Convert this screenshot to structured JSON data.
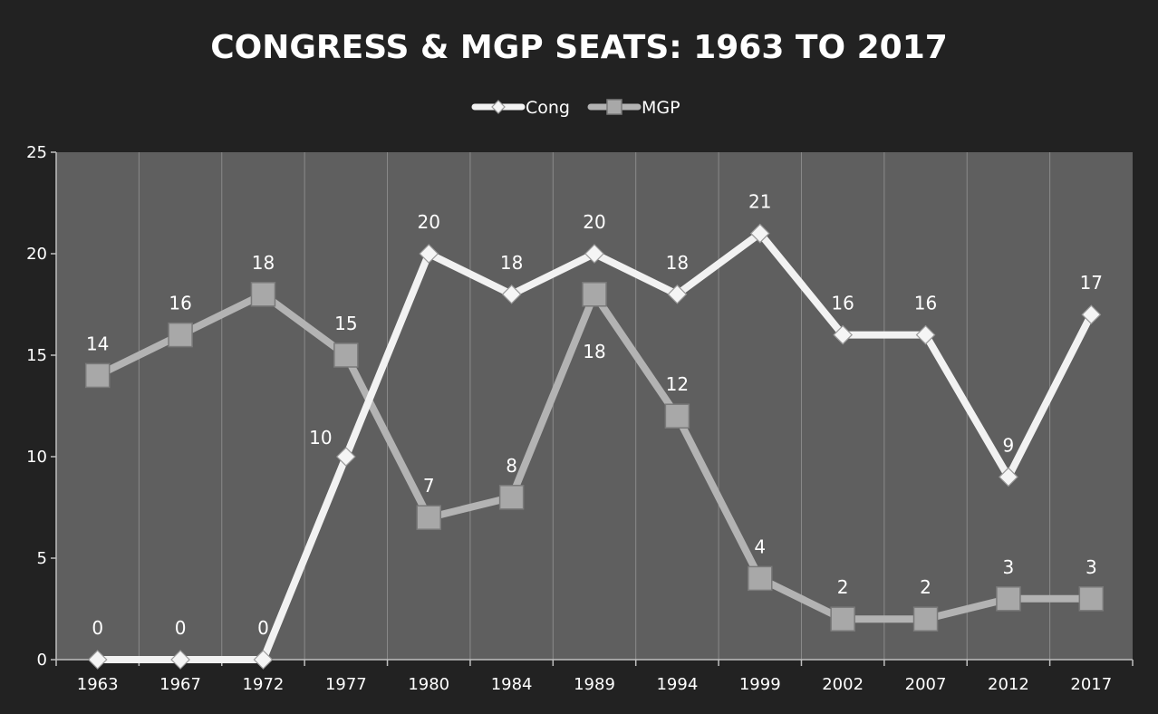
{
  "chart_data": {
    "type": "line",
    "title": "CONGRESS & MGP SEATS: 1963 TO 2017",
    "xlabel": "",
    "ylabel": "",
    "categories": [
      "1963",
      "1967",
      "1972",
      "1977",
      "1980",
      "1984",
      "1989",
      "1994",
      "1999",
      "2002",
      "2007",
      "2012",
      "2017"
    ],
    "series": [
      {
        "name": "Cong",
        "values": [
          0,
          0,
          0,
          10,
          20,
          18,
          20,
          18,
          21,
          16,
          16,
          9,
          17
        ],
        "color": "#f2f2f2",
        "marker": "diamond"
      },
      {
        "name": "MGP",
        "values": [
          14,
          16,
          18,
          15,
          7,
          8,
          18,
          12,
          4,
          2,
          2,
          3,
          3
        ],
        "color": "#b3b3b3",
        "marker": "square"
      }
    ],
    "ylim": [
      0,
      25
    ],
    "yticks": [
      0,
      5,
      10,
      15,
      20,
      25
    ],
    "grid": "vertical",
    "legend_position": "top-center",
    "colors": {
      "background": "#222222",
      "plot_area": "#5f5f5f",
      "grid": "#8a8a8a",
      "text": "#ffffff"
    }
  }
}
